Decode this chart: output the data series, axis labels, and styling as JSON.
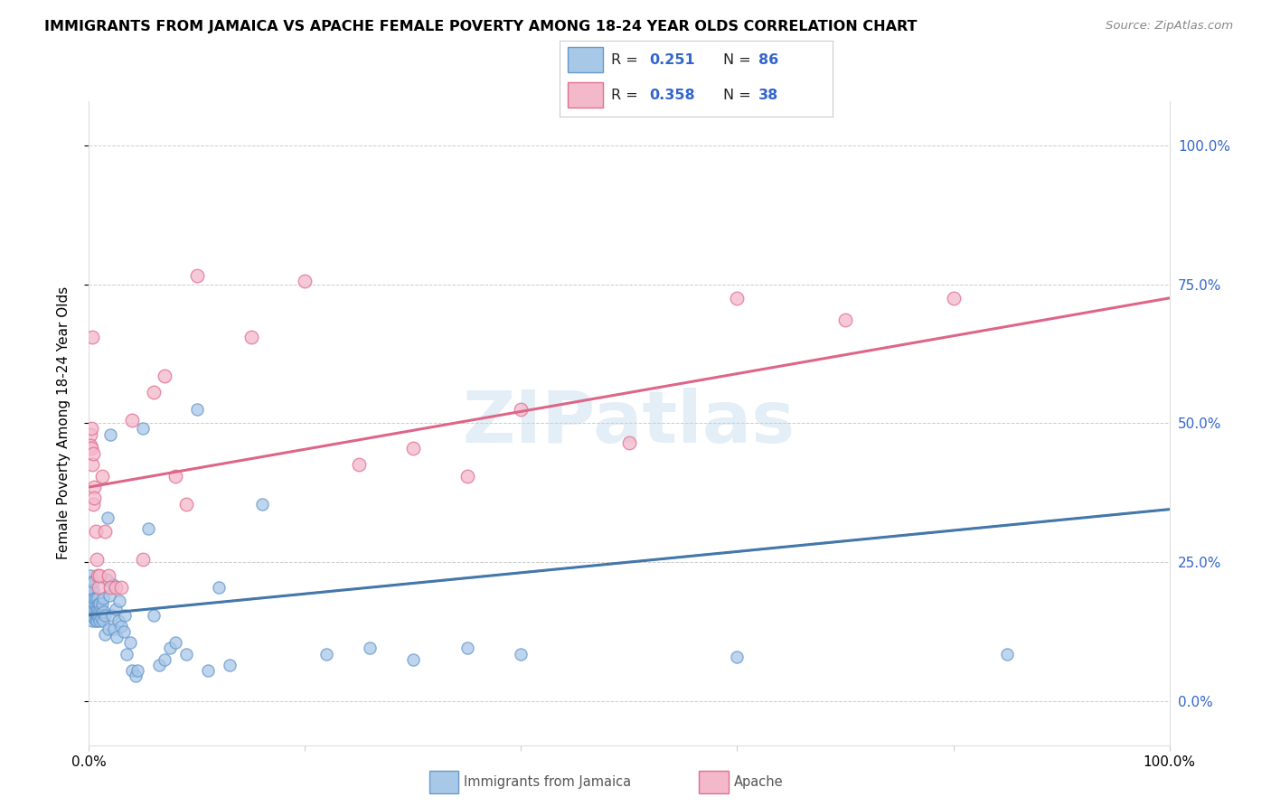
{
  "title": "IMMIGRANTS FROM JAMAICA VS APACHE FEMALE POVERTY AMONG 18-24 YEAR OLDS CORRELATION CHART",
  "source": "Source: ZipAtlas.com",
  "ylabel": "Female Poverty Among 18-24 Year Olds",
  "color_blue_fill": "#a8c8e8",
  "color_blue_edge": "#6699cc",
  "color_blue_line": "#4477aa",
  "color_pink_fill": "#f4b8cb",
  "color_pink_edge": "#e07090",
  "color_pink_line": "#dd6688",
  "color_rval": "#3366cc",
  "watermark": "ZIPatlas",
  "legend_box_color": "#f0f0f0",
  "blue_points_x": [
    0.001,
    0.001,
    0.001,
    0.001,
    0.002,
    0.002,
    0.002,
    0.002,
    0.002,
    0.003,
    0.003,
    0.003,
    0.003,
    0.004,
    0.004,
    0.004,
    0.004,
    0.004,
    0.005,
    0.005,
    0.005,
    0.005,
    0.006,
    0.006,
    0.006,
    0.006,
    0.007,
    0.007,
    0.007,
    0.008,
    0.008,
    0.008,
    0.009,
    0.009,
    0.01,
    0.01,
    0.01,
    0.011,
    0.011,
    0.012,
    0.012,
    0.013,
    0.013,
    0.014,
    0.015,
    0.015,
    0.016,
    0.017,
    0.018,
    0.019,
    0.02,
    0.021,
    0.022,
    0.023,
    0.025,
    0.026,
    0.027,
    0.028,
    0.03,
    0.032,
    0.033,
    0.035,
    0.038,
    0.04,
    0.043,
    0.045,
    0.05,
    0.055,
    0.06,
    0.065,
    0.07,
    0.075,
    0.08,
    0.09,
    0.1,
    0.11,
    0.12,
    0.13,
    0.16,
    0.22,
    0.26,
    0.3,
    0.35,
    0.4,
    0.6,
    0.85
  ],
  "blue_points_y": [
    0.225,
    0.21,
    0.195,
    0.18,
    0.215,
    0.2,
    0.185,
    0.175,
    0.165,
    0.19,
    0.175,
    0.16,
    0.145,
    0.185,
    0.17,
    0.155,
    0.2,
    0.215,
    0.165,
    0.175,
    0.185,
    0.15,
    0.155,
    0.17,
    0.185,
    0.145,
    0.165,
    0.155,
    0.145,
    0.155,
    0.185,
    0.165,
    0.175,
    0.15,
    0.165,
    0.175,
    0.145,
    0.15,
    0.165,
    0.16,
    0.175,
    0.145,
    0.185,
    0.16,
    0.12,
    0.155,
    0.22,
    0.33,
    0.13,
    0.19,
    0.48,
    0.155,
    0.21,
    0.13,
    0.165,
    0.115,
    0.145,
    0.18,
    0.135,
    0.125,
    0.155,
    0.085,
    0.105,
    0.055,
    0.045,
    0.055,
    0.49,
    0.31,
    0.155,
    0.065,
    0.075,
    0.095,
    0.105,
    0.085,
    0.525,
    0.055,
    0.205,
    0.065,
    0.355,
    0.085,
    0.095,
    0.075,
    0.095,
    0.085,
    0.08,
    0.085
  ],
  "pink_points_x": [
    0.001,
    0.001,
    0.002,
    0.002,
    0.003,
    0.003,
    0.004,
    0.004,
    0.005,
    0.005,
    0.006,
    0.007,
    0.008,
    0.009,
    0.01,
    0.012,
    0.015,
    0.018,
    0.02,
    0.025,
    0.03,
    0.04,
    0.05,
    0.06,
    0.07,
    0.08,
    0.09,
    0.1,
    0.15,
    0.2,
    0.25,
    0.3,
    0.35,
    0.4,
    0.5,
    0.6,
    0.7,
    0.8
  ],
  "pink_points_y": [
    0.48,
    0.46,
    0.455,
    0.49,
    0.425,
    0.655,
    0.355,
    0.445,
    0.385,
    0.365,
    0.305,
    0.255,
    0.225,
    0.205,
    0.225,
    0.405,
    0.305,
    0.225,
    0.205,
    0.205,
    0.205,
    0.505,
    0.255,
    0.555,
    0.585,
    0.405,
    0.355,
    0.765,
    0.655,
    0.755,
    0.425,
    0.455,
    0.405,
    0.525,
    0.465,
    0.725,
    0.685,
    0.725
  ],
  "blue_line_x": [
    0.0,
    1.0
  ],
  "blue_line_y": [
    0.155,
    0.345
  ],
  "pink_line_x": [
    0.0,
    1.0
  ],
  "pink_line_y": [
    0.385,
    0.725
  ],
  "xlim": [
    0.0,
    1.0
  ],
  "ylim": [
    -0.08,
    1.08
  ],
  "yticks": [
    0.0,
    0.25,
    0.5,
    0.75,
    1.0
  ],
  "ytick_labels": [
    "0.0%",
    "25.0%",
    "50.0%",
    "75.0%",
    "100.0%"
  ]
}
